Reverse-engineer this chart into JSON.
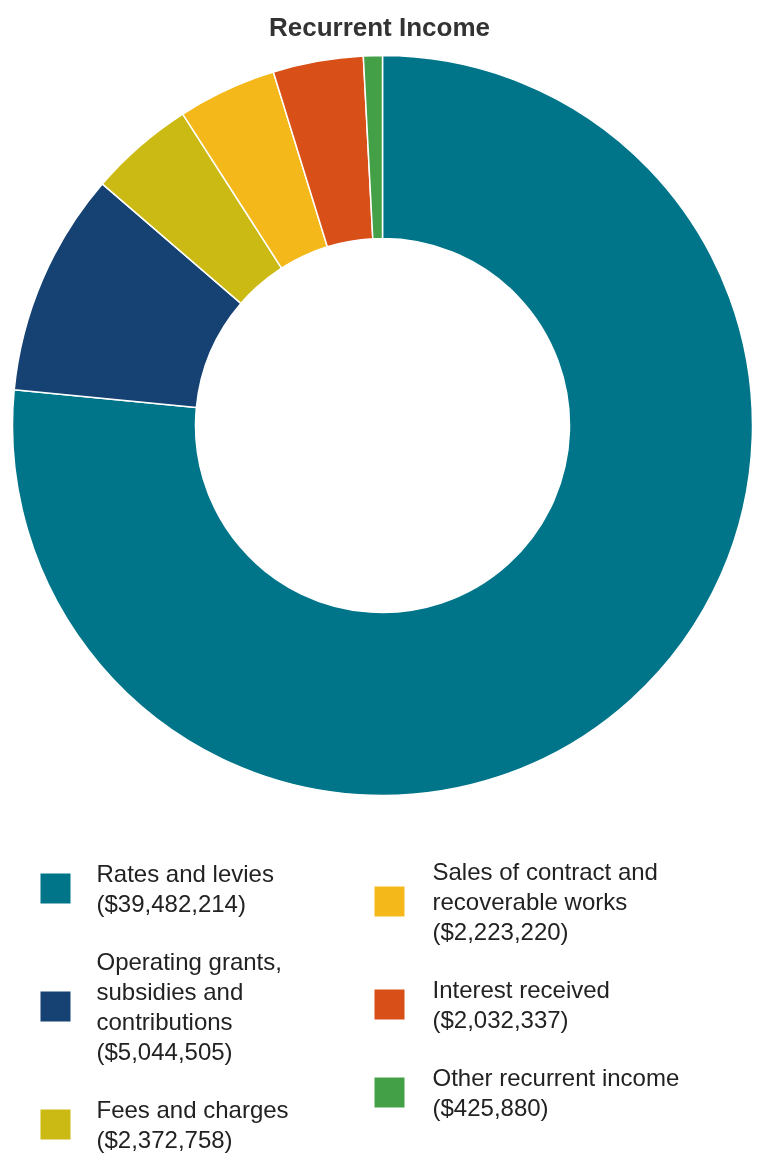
{
  "chart_data": {
    "type": "donut",
    "title": "Recurrent Income",
    "categories": [
      "Rates and levies",
      "Operating grants, subsidies and contributions",
      "Fees and charges",
      "Sales of contract and recoverable works",
      "Interest received",
      "Other recurrent income"
    ],
    "values": [
      39482214,
      5044505,
      2372758,
      2223220,
      2032337,
      425880
    ],
    "value_labels": [
      "($39,482,214)",
      "($5,044,505)",
      "($2,372,758)",
      "($2,223,220)",
      "($2,032,337)",
      "($425,880)"
    ],
    "colors": [
      "#00758a",
      "#154273",
      "#cbb914",
      "#f4b81a",
      "#d84f17",
      "#43a047"
    ],
    "legend": "bottom"
  }
}
